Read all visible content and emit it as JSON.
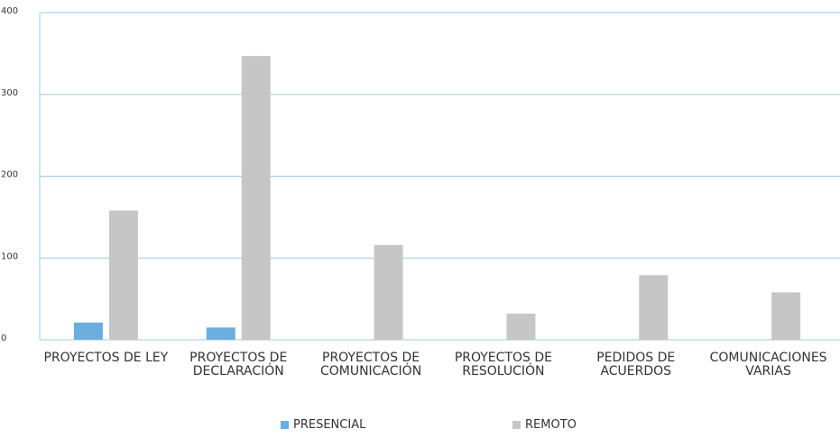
{
  "chart_data": {
    "type": "bar",
    "categories": [
      "PROYECTOS DE LEY",
      "PROYECTOS DE DECLARACIÓN",
      "PROYECTOS DE COMUNICACIÓN",
      "PROYECTOS DE RESOLUCIÓN",
      "PEDIDOS DE ACUERDOS",
      "COMUNICACIONES VARIAS"
    ],
    "series": [
      {
        "name": "PRESENCIAL",
        "color": "#6aaee0",
        "values": [
          21,
          15,
          0,
          0,
          0,
          0
        ]
      },
      {
        "name": "REMOTO",
        "color": "#c6c6c6",
        "values": [
          158,
          347,
          116,
          32,
          79,
          58
        ]
      }
    ],
    "ylim": [
      0,
      400
    ],
    "yticks": [
      0,
      100,
      200,
      300,
      400
    ],
    "grid": true
  }
}
